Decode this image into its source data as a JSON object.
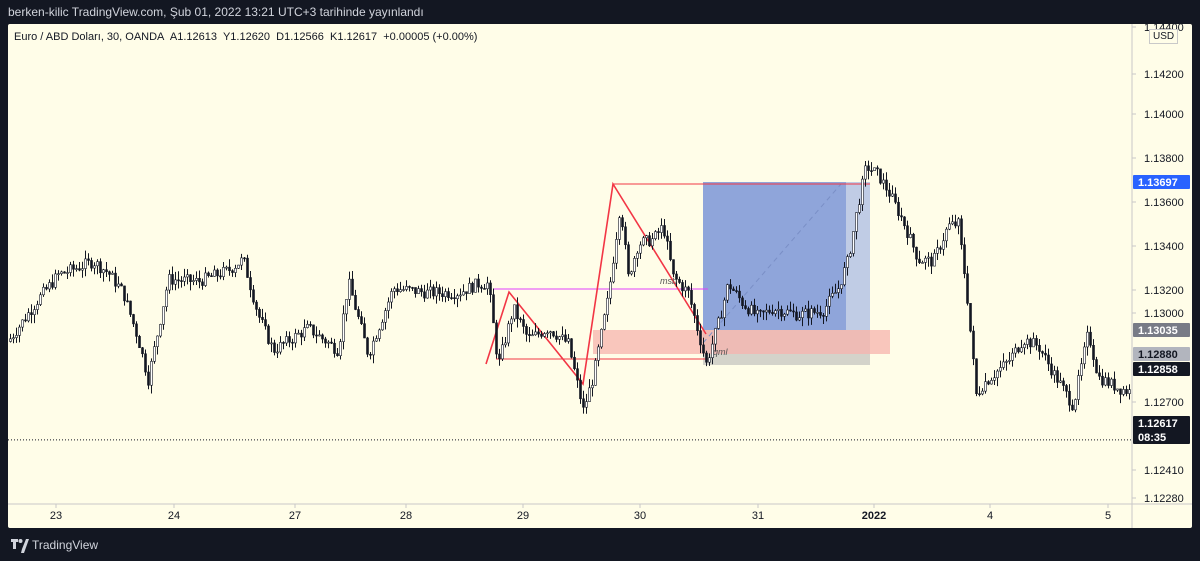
{
  "header": {
    "title": "berken-kilic TradingView.com, Şub 01, 2022 13:21 UTC+3 tarihinde yayınlandı"
  },
  "legend": {
    "symbol": "Euro / ABD Doları, 30, OANDA",
    "open_label": "A",
    "open": "1.12613",
    "high_label": "Y",
    "high": "1.12620",
    "low_label": "D",
    "low": "1.12566",
    "close_label": "K",
    "close": "1.12617",
    "change": "+0.00005 (+0.00%)"
  },
  "currency": "USD",
  "colors": {
    "background": "#fffde8",
    "candles": "#131722",
    "red_lines": "#f23645",
    "magenta_line": "#e040fb",
    "target_zone": "#6a87d6",
    "stop_zone": "#f7b3ad",
    "target_tag": "#2962ff",
    "axis_text": "#131722"
  },
  "chart_data": {
    "type": "candlestick",
    "symbol": "EUR/USD",
    "timeframe": "30",
    "ylim": [
      1.1222,
      1.1449
    ],
    "y_ticks": [
      "1.14400",
      "1.14200",
      "1.14000",
      "1.13800",
      "1.13600",
      "1.13400",
      "1.13200",
      "1.13000",
      "1.12700",
      "1.12410",
      "1.12280"
    ],
    "x_ticks": [
      "23",
      "24",
      "27",
      "28",
      "29",
      "30",
      "31",
      "2022",
      "4",
      "5"
    ],
    "price_path": [
      [
        0,
        1.1306
      ],
      [
        30,
        1.1325
      ],
      [
        50,
        1.1336
      ],
      [
        85,
        1.1342
      ],
      [
        100,
        1.1337
      ],
      [
        115,
        1.1328
      ],
      [
        130,
        1.1307
      ],
      [
        140,
        1.1289
      ],
      [
        160,
        1.1334
      ],
      [
        190,
        1.1333
      ],
      [
        220,
        1.1338
      ],
      [
        235,
        1.1343
      ],
      [
        250,
        1.1318
      ],
      [
        265,
        1.1302
      ],
      [
        300,
        1.1312
      ],
      [
        330,
        1.1302
      ],
      [
        340,
        1.1333
      ],
      [
        360,
        1.13
      ],
      [
        385,
        1.133
      ],
      [
        420,
        1.1328
      ],
      [
        450,
        1.1328
      ],
      [
        470,
        1.1332
      ],
      [
        480,
        1.1332
      ],
      [
        490,
        1.1295
      ],
      [
        505,
        1.1321
      ],
      [
        520,
        1.1307
      ],
      [
        540,
        1.1312
      ],
      [
        560,
        1.1305
      ],
      [
        575,
        1.1275
      ],
      [
        585,
        1.129
      ],
      [
        600,
        1.1326
      ],
      [
        612,
        1.1368
      ],
      [
        620,
        1.1335
      ],
      [
        630,
        1.135
      ],
      [
        645,
        1.1352
      ],
      [
        655,
        1.1358
      ],
      [
        665,
        1.1335
      ],
      [
        680,
        1.1328
      ],
      [
        698,
        1.1296
      ],
      [
        710,
        1.1314
      ],
      [
        720,
        1.1332
      ],
      [
        735,
        1.1323
      ],
      [
        750,
        1.1317
      ],
      [
        765,
        1.1321
      ],
      [
        790,
        1.1318
      ],
      [
        815,
        1.132
      ],
      [
        830,
        1.133
      ],
      [
        840,
        1.1343
      ],
      [
        850,
        1.1368
      ],
      [
        858,
        1.1385
      ],
      [
        870,
        1.1381
      ],
      [
        882,
        1.1372
      ],
      [
        895,
        1.136
      ],
      [
        910,
        1.1343
      ],
      [
        925,
        1.1342
      ],
      [
        940,
        1.1358
      ],
      [
        950,
        1.1359
      ],
      [
        958,
        1.133
      ],
      [
        968,
        1.1282
      ],
      [
        975,
        1.1287
      ],
      [
        1000,
        1.1297
      ],
      [
        1015,
        1.1307
      ],
      [
        1030,
        1.1304
      ],
      [
        1045,
        1.1292
      ],
      [
        1065,
        1.1277
      ],
      [
        1080,
        1.131
      ],
      [
        1090,
        1.129
      ],
      [
        1110,
        1.1285
      ],
      [
        1125,
        1.1283
      ],
      [
        1131,
        1.1286
      ]
    ],
    "price_tags": [
      {
        "label": "1.13697",
        "value": 1.13697,
        "style": "target"
      },
      {
        "label": "1.13035",
        "value": 1.13035,
        "style": "entry"
      },
      {
        "label": "1.12880",
        "value": 1.1288,
        "style": "stop"
      },
      {
        "label": "1.12858",
        "value": 1.12858,
        "style": "last"
      },
      {
        "label": "1.12617",
        "value": 1.12617,
        "style": "current",
        "countdown": "08:35"
      }
    ],
    "annotations": [
      {
        "text": "msb",
        "x_day": 645,
        "price": 1.1321
      },
      {
        "text": "qml",
        "x_day": 700,
        "price": 1.1293
      }
    ],
    "current_price": 1.12617
  }
}
